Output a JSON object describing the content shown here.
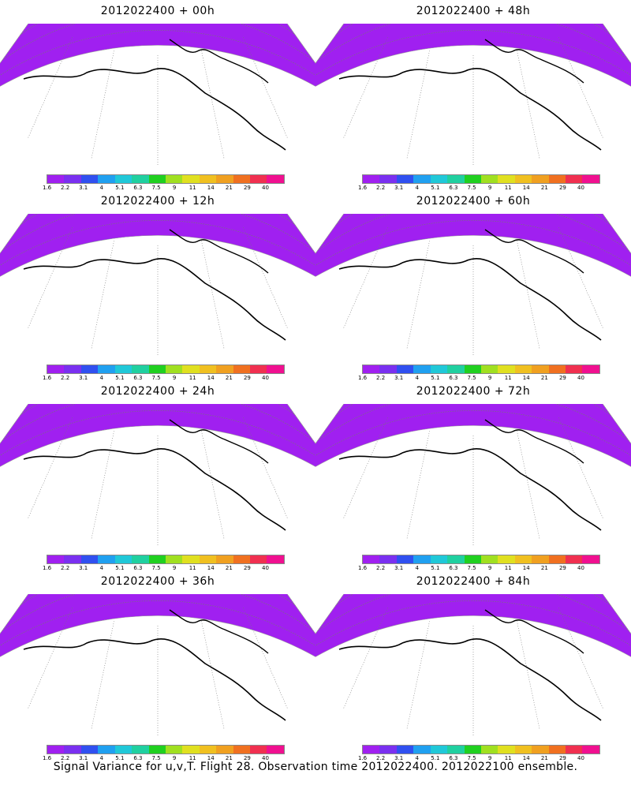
{
  "footer": "Signal Variance for u,v,T. Flight 28. Observation time 2012022400. 2012022100 ensemble.",
  "colorbar": {
    "ticks": [
      "1.6",
      "2.2",
      "3.1",
      "4",
      "5.1",
      "6.3",
      "7.5",
      "9",
      "11",
      "14",
      "21",
      "29",
      "40"
    ],
    "colors": [
      "#a020f0",
      "#7a30f0",
      "#3050f0",
      "#20a0f0",
      "#20c8d8",
      "#20d0a0",
      "#20d020",
      "#a0e020",
      "#e0e020",
      "#f0c020",
      "#f0a020",
      "#f07020",
      "#f03050",
      "#f01090"
    ]
  },
  "panels": [
    {
      "title": "2012022400 + 00h",
      "intensity": 0.35
    },
    {
      "title": "2012022400 + 48h",
      "intensity": 0.78
    },
    {
      "title": "2012022400 + 12h",
      "intensity": 0.55
    },
    {
      "title": "2012022400 + 60h",
      "intensity": 0.82
    },
    {
      "title": "2012022400 + 24h",
      "intensity": 0.65
    },
    {
      "title": "2012022400 + 72h",
      "intensity": 0.8
    },
    {
      "title": "2012022400 + 36h",
      "intensity": 0.72
    },
    {
      "title": "2012022400 + 84h",
      "intensity": 0.84
    }
  ]
}
